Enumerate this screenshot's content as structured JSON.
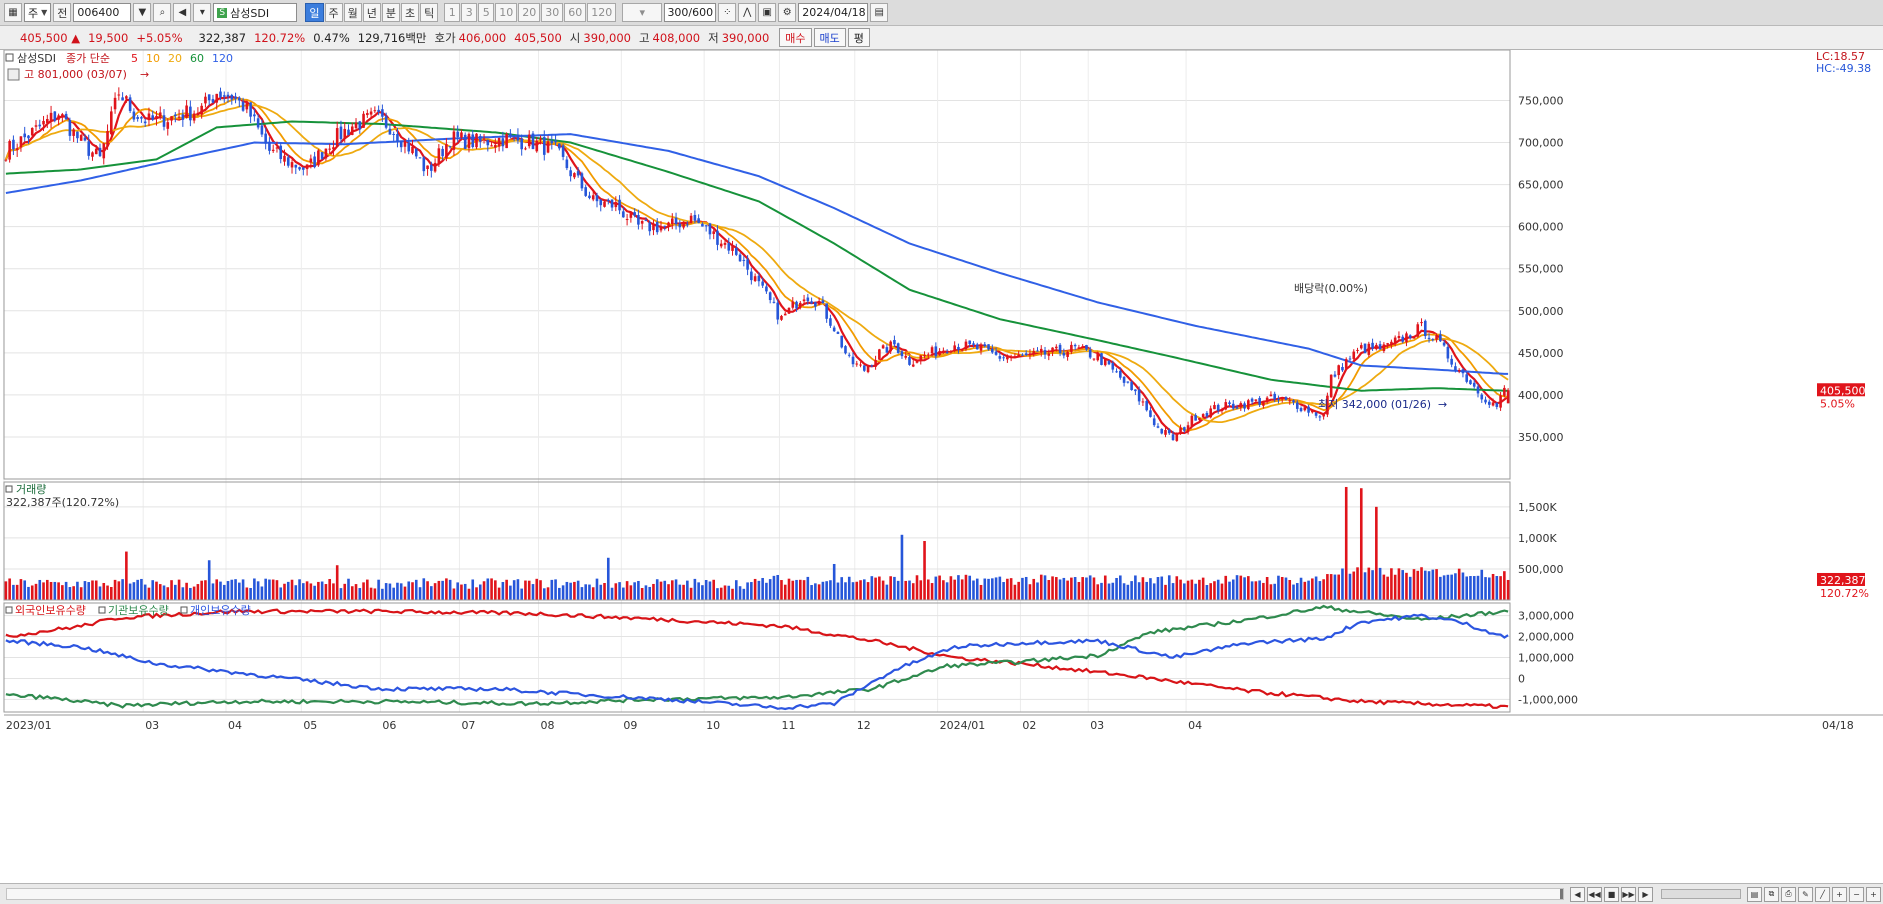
{
  "toolbar": {
    "period_unit": "주",
    "base_unit": "전",
    "code": "006400",
    "search_icon": "search-icon",
    "speaker_icon": "speaker-icon",
    "stock_name": "삼성SDI",
    "interval_buttons": [
      "일",
      "주",
      "월",
      "년",
      "분",
      "초",
      "틱"
    ],
    "active_interval": "일",
    "number_buttons": [
      "1",
      "3",
      "5",
      "10",
      "20",
      "30",
      "60",
      "120"
    ],
    "count": "300/600",
    "date": "2024/04/18",
    "icons": [
      "grid-icon",
      "chart-type-icon",
      "save-icon",
      "settings-icon",
      "calendar-icon"
    ]
  },
  "quote": {
    "price": "405,500",
    "change_arrow": "▲",
    "change": "19,500",
    "change_pct": "+5.05%",
    "volume": "322,387",
    "volume_ratio": "120.72%",
    "turnover_rate": "0.47%",
    "amount": "129,716백만",
    "ask_label": "호가",
    "ask": "406,000",
    "bid": "405,500",
    "open_label": "시",
    "open": "390,000",
    "high_label": "고",
    "high": "408,000",
    "low_label": "저",
    "low": "390,000",
    "buy_label": "매수",
    "sell_label": "매도",
    "eval_label": "평"
  },
  "price_panel": {
    "legend_name": "삼성SDI",
    "legend_ma_label": "종가 단순",
    "ma_periods": [
      "5",
      "10",
      "20",
      "60",
      "120"
    ],
    "ma_colors": [
      "#e0141b",
      "#f29b00",
      "#eeaa10",
      "#16923a",
      "#3060e6"
    ],
    "high_note": "고 801,000 (03/07)",
    "low_note": "최저 342,000 (01/26)",
    "dividend_note": "배당락(0.00%)",
    "lc": "LC:18.57",
    "hc": "HC:-49.38",
    "y_ticks": [
      "750,000",
      "700,000",
      "650,000",
      "600,000",
      "550,000",
      "500,000",
      "450,000",
      "400,000",
      "350,000"
    ],
    "current_tag": "405,500",
    "current_pct": "5.05%"
  },
  "volume_panel": {
    "title": "거래량",
    "subtitle": "322,387주(120.72%)",
    "y_ticks": [
      "1,500K",
      "1,000K",
      "500,000"
    ],
    "current_tag": "322,387",
    "current_pct": "120.72%"
  },
  "holdings_panel": {
    "legend": [
      "외국인보유수량",
      "기관보유수량",
      "개인보유수량"
    ],
    "colors": [
      "#d81418",
      "#2f8a4e",
      "#2c55e0"
    ],
    "y_ticks": [
      "3,000,000",
      "2,000,000",
      "1,000,000",
      "0",
      "-1,000,000"
    ]
  },
  "x_axis": {
    "labels": [
      "2023/01",
      "03",
      "04",
      "05",
      "06",
      "07",
      "08",
      "09",
      "10",
      "11",
      "12",
      "2024/01",
      "02",
      "03",
      "04",
      "04/18"
    ]
  },
  "chart_data": {
    "type": "candlestick",
    "price_ylim": [
      300000,
      810000
    ],
    "close_anchors": [
      [
        0,
        690000
      ],
      [
        8,
        715000
      ],
      [
        14,
        735000
      ],
      [
        20,
        700000
      ],
      [
        25,
        680000
      ],
      [
        30,
        760000
      ],
      [
        34,
        735000
      ],
      [
        38,
        725000
      ],
      [
        44,
        730000
      ],
      [
        52,
        740000
      ],
      [
        56,
        760000
      ],
      [
        60,
        755000
      ],
      [
        64,
        740000
      ],
      [
        70,
        690000
      ],
      [
        76,
        675000
      ],
      [
        80,
        668000
      ],
      [
        86,
        700000
      ],
      [
        92,
        720000
      ],
      [
        98,
        730000
      ],
      [
        102,
        720000
      ],
      [
        108,
        690000
      ],
      [
        112,
        665000
      ],
      [
        118,
        705000
      ],
      [
        126,
        700000
      ],
      [
        132,
        705000
      ],
      [
        140,
        700000
      ],
      [
        146,
        690000
      ],
      [
        150,
        665000
      ],
      [
        156,
        630000
      ],
      [
        162,
        625000
      ],
      [
        168,
        600000
      ],
      [
        176,
        600000
      ],
      [
        182,
        610000
      ],
      [
        188,
        590000
      ],
      [
        194,
        570000
      ],
      [
        200,
        530000
      ],
      [
        206,
        490000
      ],
      [
        212,
        520000
      ],
      [
        216,
        510000
      ],
      [
        220,
        480000
      ],
      [
        224,
        440000
      ],
      [
        228,
        430000
      ],
      [
        232,
        450000
      ],
      [
        236,
        460000
      ],
      [
        240,
        440000
      ],
      [
        246,
        450000
      ],
      [
        252,
        460000
      ],
      [
        258,
        455000
      ],
      [
        264,
        445000
      ],
      [
        270,
        445000
      ],
      [
        278,
        450000
      ],
      [
        284,
        455000
      ],
      [
        290,
        445000
      ],
      [
        296,
        420000
      ],
      [
        302,
        390000
      ],
      [
        306,
        360000
      ],
      [
        310,
        348000
      ],
      [
        316,
        375000
      ],
      [
        322,
        385000
      ],
      [
        330,
        390000
      ],
      [
        336,
        395000
      ],
      [
        342,
        390000
      ],
      [
        348,
        378000
      ],
      [
        350,
        375000
      ],
      [
        352,
        420000
      ],
      [
        356,
        440000
      ],
      [
        360,
        455000
      ],
      [
        366,
        455000
      ],
      [
        372,
        470000
      ],
      [
        376,
        480000
      ],
      [
        380,
        465000
      ],
      [
        384,
        440000
      ],
      [
        388,
        420000
      ],
      [
        392,
        400000
      ],
      [
        396,
        386000
      ],
      [
        398,
        405500
      ]
    ],
    "ma": {
      "ma60": [
        [
          0,
          663000
        ],
        [
          20,
          668000
        ],
        [
          40,
          680000
        ],
        [
          56,
          718000
        ],
        [
          76,
          725000
        ],
        [
          100,
          722000
        ],
        [
          130,
          712000
        ],
        [
          150,
          700000
        ],
        [
          176,
          665000
        ],
        [
          200,
          630000
        ],
        [
          220,
          580000
        ],
        [
          240,
          525000
        ],
        [
          264,
          490000
        ],
        [
          290,
          465000
        ],
        [
          310,
          445000
        ],
        [
          336,
          418000
        ],
        [
          360,
          405000
        ],
        [
          380,
          408000
        ],
        [
          398,
          405000
        ]
      ],
      "ma120": [
        [
          0,
          640000
        ],
        [
          20,
          655000
        ],
        [
          40,
          675000
        ],
        [
          66,
          700000
        ],
        [
          90,
          698000
        ],
        [
          120,
          705000
        ],
        [
          150,
          710000
        ],
        [
          176,
          690000
        ],
        [
          200,
          660000
        ],
        [
          220,
          622000
        ],
        [
          240,
          580000
        ],
        [
          264,
          545000
        ],
        [
          290,
          510000
        ],
        [
          316,
          482000
        ],
        [
          346,
          455000
        ],
        [
          360,
          435000
        ],
        [
          380,
          430000
        ],
        [
          398,
          425000
        ]
      ]
    },
    "holdings": {
      "foreign": [
        [
          0,
          2000000
        ],
        [
          20,
          2500000
        ],
        [
          30,
          2900000
        ],
        [
          60,
          3200000
        ],
        [
          100,
          3200000
        ],
        [
          140,
          3100000
        ],
        [
          176,
          2800000
        ],
        [
          206,
          2500000
        ],
        [
          230,
          1800000
        ],
        [
          252,
          1000000
        ],
        [
          270,
          700000
        ],
        [
          300,
          100000
        ],
        [
          330,
          -600000
        ],
        [
          360,
          -1100000
        ],
        [
          398,
          -1350000
        ]
      ],
      "institution": [
        [
          0,
          -800000
        ],
        [
          10,
          -900000
        ],
        [
          30,
          -1300000
        ],
        [
          60,
          -1100000
        ],
        [
          100,
          -1100000
        ],
        [
          140,
          -1200000
        ],
        [
          170,
          -1000000
        ],
        [
          206,
          -900000
        ],
        [
          230,
          -500000
        ],
        [
          250,
          600000
        ],
        [
          270,
          800000
        ],
        [
          290,
          1100000
        ],
        [
          304,
          2200000
        ],
        [
          330,
          2800000
        ],
        [
          350,
          3400000
        ],
        [
          376,
          2800000
        ],
        [
          398,
          3200000
        ]
      ],
      "individual": [
        [
          0,
          1800000
        ],
        [
          20,
          1500000
        ],
        [
          40,
          700000
        ],
        [
          60,
          300000
        ],
        [
          100,
          -500000
        ],
        [
          130,
          -500000
        ],
        [
          156,
          -800000
        ],
        [
          176,
          -1000000
        ],
        [
          206,
          -1400000
        ],
        [
          220,
          -1200000
        ],
        [
          236,
          400000
        ],
        [
          252,
          1500000
        ],
        [
          270,
          1700000
        ],
        [
          290,
          1800000
        ],
        [
          310,
          1000000
        ],
        [
          330,
          1700000
        ],
        [
          350,
          1900000
        ],
        [
          360,
          2700000
        ],
        [
          376,
          3000000
        ],
        [
          386,
          2700000
        ],
        [
          398,
          2000000
        ]
      ]
    },
    "holdings_ylim": [
      -1600000,
      3600000
    ],
    "volume_ylim": [
      0,
      1900000
    ],
    "volume_spikes": [
      [
        32,
        780000
      ],
      [
        54,
        640000
      ],
      [
        88,
        560000
      ],
      [
        160,
        680000
      ],
      [
        220,
        580000
      ],
      [
        238,
        1050000
      ],
      [
        244,
        950000
      ],
      [
        356,
        1820000
      ],
      [
        360,
        1800000
      ],
      [
        364,
        1500000
      ]
    ],
    "n_bars": 400
  }
}
